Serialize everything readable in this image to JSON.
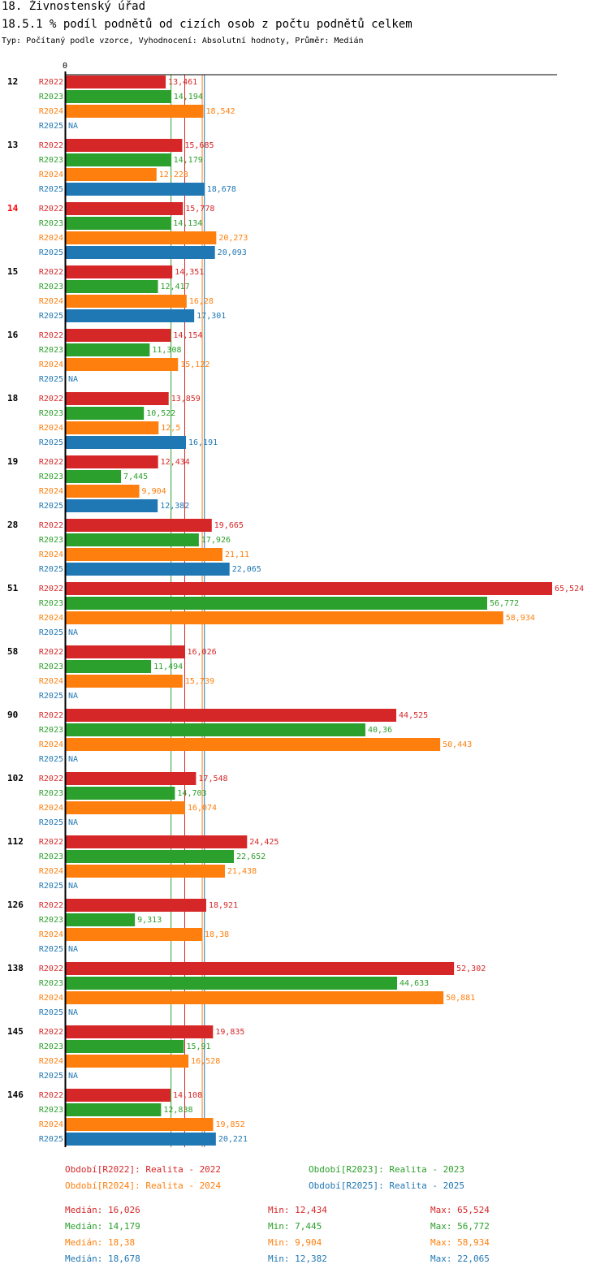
{
  "header": {
    "title": "18. Živnostenský úřad",
    "chart_title": "18.5.1 % podíl podnětů od cizích osob z počtu podnětů celkem",
    "subtitle": "Typ: Počítaný podle vzorce, Vyhodnocení: Absolutní hodnoty, Průměr: Medián"
  },
  "colors": {
    "R2022": "#d62728",
    "R2023": "#2ca02c",
    "R2024": "#ff7f0e",
    "R2025": "#1f77b4",
    "highlight": "#ff0000"
  },
  "chart_data": {
    "type": "bar",
    "orientation": "horizontal",
    "title": "18.5.1 % podíl podnětů od cizích osob z počtu podnětů celkem",
    "axis_zero_label": "0",
    "xlim": [
      0,
      65.524
    ],
    "highlighted_category": "14",
    "na_label": "NA",
    "series_names": [
      "R2022",
      "R2023",
      "R2024",
      "R2025"
    ],
    "categories": [
      "12",
      "13",
      "14",
      "15",
      "16",
      "18",
      "19",
      "28",
      "51",
      "58",
      "90",
      "102",
      "112",
      "126",
      "138",
      "145",
      "146"
    ],
    "series": [
      {
        "name": "R2022",
        "values": [
          13.461,
          15.685,
          15.778,
          14.351,
          14.154,
          13.859,
          12.434,
          19.665,
          65.524,
          16.026,
          44.525,
          17.548,
          24.425,
          18.921,
          52.302,
          19.835,
          14.108
        ],
        "labels": [
          "13,461",
          "15,685",
          "15,778",
          "14,351",
          "14,154",
          "13,859",
          "12,434",
          "19,665",
          "65,524",
          "16,026",
          "44,525",
          "17,548",
          "24,425",
          "18,921",
          "52,302",
          "19,835",
          "14,108"
        ]
      },
      {
        "name": "R2023",
        "values": [
          14.194,
          14.179,
          14.134,
          12.417,
          11.308,
          10.522,
          7.445,
          17.926,
          56.772,
          11.494,
          40.36,
          14.703,
          22.652,
          9.313,
          44.633,
          15.91,
          12.838
        ],
        "labels": [
          "14,194",
          "14,179",
          "14,134",
          "12,417",
          "11,308",
          "10,522",
          "7,445",
          "17,926",
          "56,772",
          "11,494",
          "40,36",
          "14,703",
          "22,652",
          "9,313",
          "44,633",
          "15,91",
          "12,838"
        ]
      },
      {
        "name": "R2024",
        "values": [
          18.542,
          12.228,
          20.273,
          16.28,
          15.122,
          12.5,
          9.904,
          21.11,
          58.934,
          15.739,
          50.443,
          16.074,
          21.438,
          18.38,
          50.881,
          16.528,
          19.852
        ],
        "labels": [
          "18,542",
          "12,228",
          "20,273",
          "16,28",
          "15,122",
          "12,5",
          "9,904",
          "21,11",
          "58,934",
          "15,739",
          "50,443",
          "16,074",
          "21,438",
          "18,38",
          "50,881",
          "16,528",
          "19,852"
        ]
      },
      {
        "name": "R2025",
        "values": [
          null,
          18.678,
          20.093,
          17.301,
          null,
          16.191,
          12.382,
          22.065,
          null,
          null,
          null,
          null,
          null,
          null,
          null,
          null,
          20.221
        ],
        "labels": [
          "NA",
          "18,678",
          "20,093",
          "17,301",
          "NA",
          "16,191",
          "12,382",
          "22,065",
          "NA",
          "NA",
          "NA",
          "NA",
          "NA",
          "NA",
          "NA",
          "NA",
          "20,221"
        ]
      }
    ],
    "medians": {
      "R2022": 16.026,
      "R2023": 14.179,
      "R2024": 18.38,
      "R2025": 18.678
    },
    "legend": [
      {
        "series": "R2022",
        "text": "Období[R2022]: Realita - 2022"
      },
      {
        "series": "R2023",
        "text": "Období[R2023]: Realita - 2023"
      },
      {
        "series": "R2024",
        "text": "Období[R2024]: Realita - 2024"
      },
      {
        "series": "R2025",
        "text": "Období[R2025]: Realita - 2025"
      }
    ],
    "stats": [
      {
        "series": "R2022",
        "median": "Medián: 16,026",
        "min": "Min: 12,434",
        "max": "Max: 65,524"
      },
      {
        "series": "R2023",
        "median": "Medián: 14,179",
        "min": "Min: 7,445",
        "max": "Max: 56,772"
      },
      {
        "series": "R2024",
        "median": "Medián: 18,38",
        "min": "Min: 9,904",
        "max": "Max: 58,934"
      },
      {
        "series": "R2025",
        "median": "Medián: 18,678",
        "min": "Min: 12,382",
        "max": "Max: 22,065"
      }
    ]
  }
}
